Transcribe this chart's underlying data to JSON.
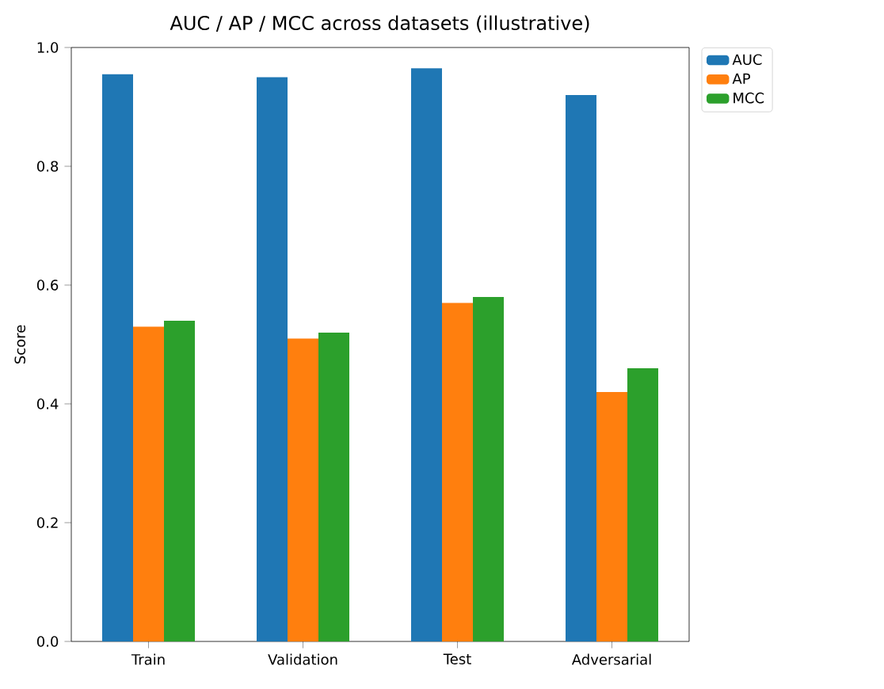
{
  "chart_data": {
    "type": "bar",
    "title": "AUC / AP / MCC across datasets (illustrative)",
    "ylabel": "Score",
    "categories": [
      "Train",
      "Validation",
      "Test",
      "Adversarial"
    ],
    "series": [
      {
        "name": "AUC",
        "color": "#1f77b4",
        "values": [
          0.955,
          0.95,
          0.965,
          0.92
        ]
      },
      {
        "name": "AP",
        "color": "#ff7f0e",
        "values": [
          0.53,
          0.51,
          0.57,
          0.42
        ]
      },
      {
        "name": "MCC",
        "color": "#2ca02c",
        "values": [
          0.54,
          0.52,
          0.58,
          0.46
        ]
      }
    ],
    "ylim": [
      0,
      1
    ],
    "yticks": [
      {
        "value": 0,
        "label": "0.0"
      },
      0.2,
      0.4,
      0.6,
      0.8,
      {
        "value": 1,
        "label": "1.0"
      }
    ],
    "legend": "top right"
  }
}
